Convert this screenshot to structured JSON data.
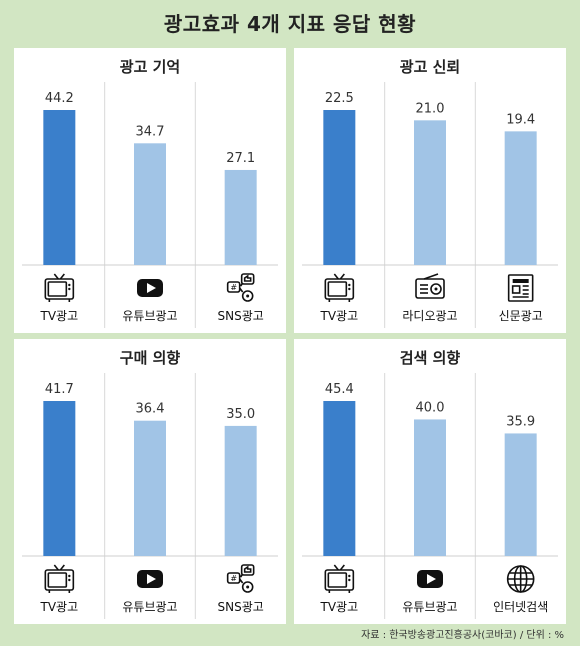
{
  "title": "광고효과 4개 지표 응답 현황",
  "source": "자료 : 한국방송광고진흥공사(코바코) / 단위 : %",
  "colors": {
    "highlight": "#3a7fcb",
    "normal": "#a1c4e6",
    "background": "#d2e6c3"
  },
  "chart_data": [
    {
      "type": "bar",
      "title": "광고 기억",
      "categories": [
        "TV광고",
        "유튜브광고",
        "SNS광고"
      ],
      "icons": [
        "tv-icon",
        "youtube-icon",
        "sns-icon"
      ],
      "values": [
        44.2,
        34.7,
        27.1
      ],
      "value_labels": [
        "44.2",
        "34.7",
        "27.1"
      ],
      "highlight_index": 0
    },
    {
      "type": "bar",
      "title": "광고 신뢰",
      "categories": [
        "TV광고",
        "라디오광고",
        "신문광고"
      ],
      "icons": [
        "tv-icon",
        "radio-icon",
        "newspaper-icon"
      ],
      "values": [
        22.5,
        21.0,
        19.4
      ],
      "value_labels": [
        "22.5",
        "21.0",
        "19.4"
      ],
      "highlight_index": 0
    },
    {
      "type": "bar",
      "title": "구매 의향",
      "categories": [
        "TV광고",
        "유튜브광고",
        "SNS광고"
      ],
      "icons": [
        "tv-icon",
        "youtube-icon",
        "sns-icon"
      ],
      "values": [
        41.7,
        36.4,
        35.0
      ],
      "value_labels": [
        "41.7",
        "36.4",
        "35.0"
      ],
      "highlight_index": 0
    },
    {
      "type": "bar",
      "title": "검색 의향",
      "categories": [
        "TV광고",
        "유튜브광고",
        "인터넷검색"
      ],
      "icons": [
        "tv-icon",
        "youtube-icon",
        "globe-icon"
      ],
      "values": [
        45.4,
        40.0,
        35.9
      ],
      "value_labels": [
        "45.4",
        "40.0",
        "35.9"
      ],
      "highlight_index": 0
    }
  ]
}
